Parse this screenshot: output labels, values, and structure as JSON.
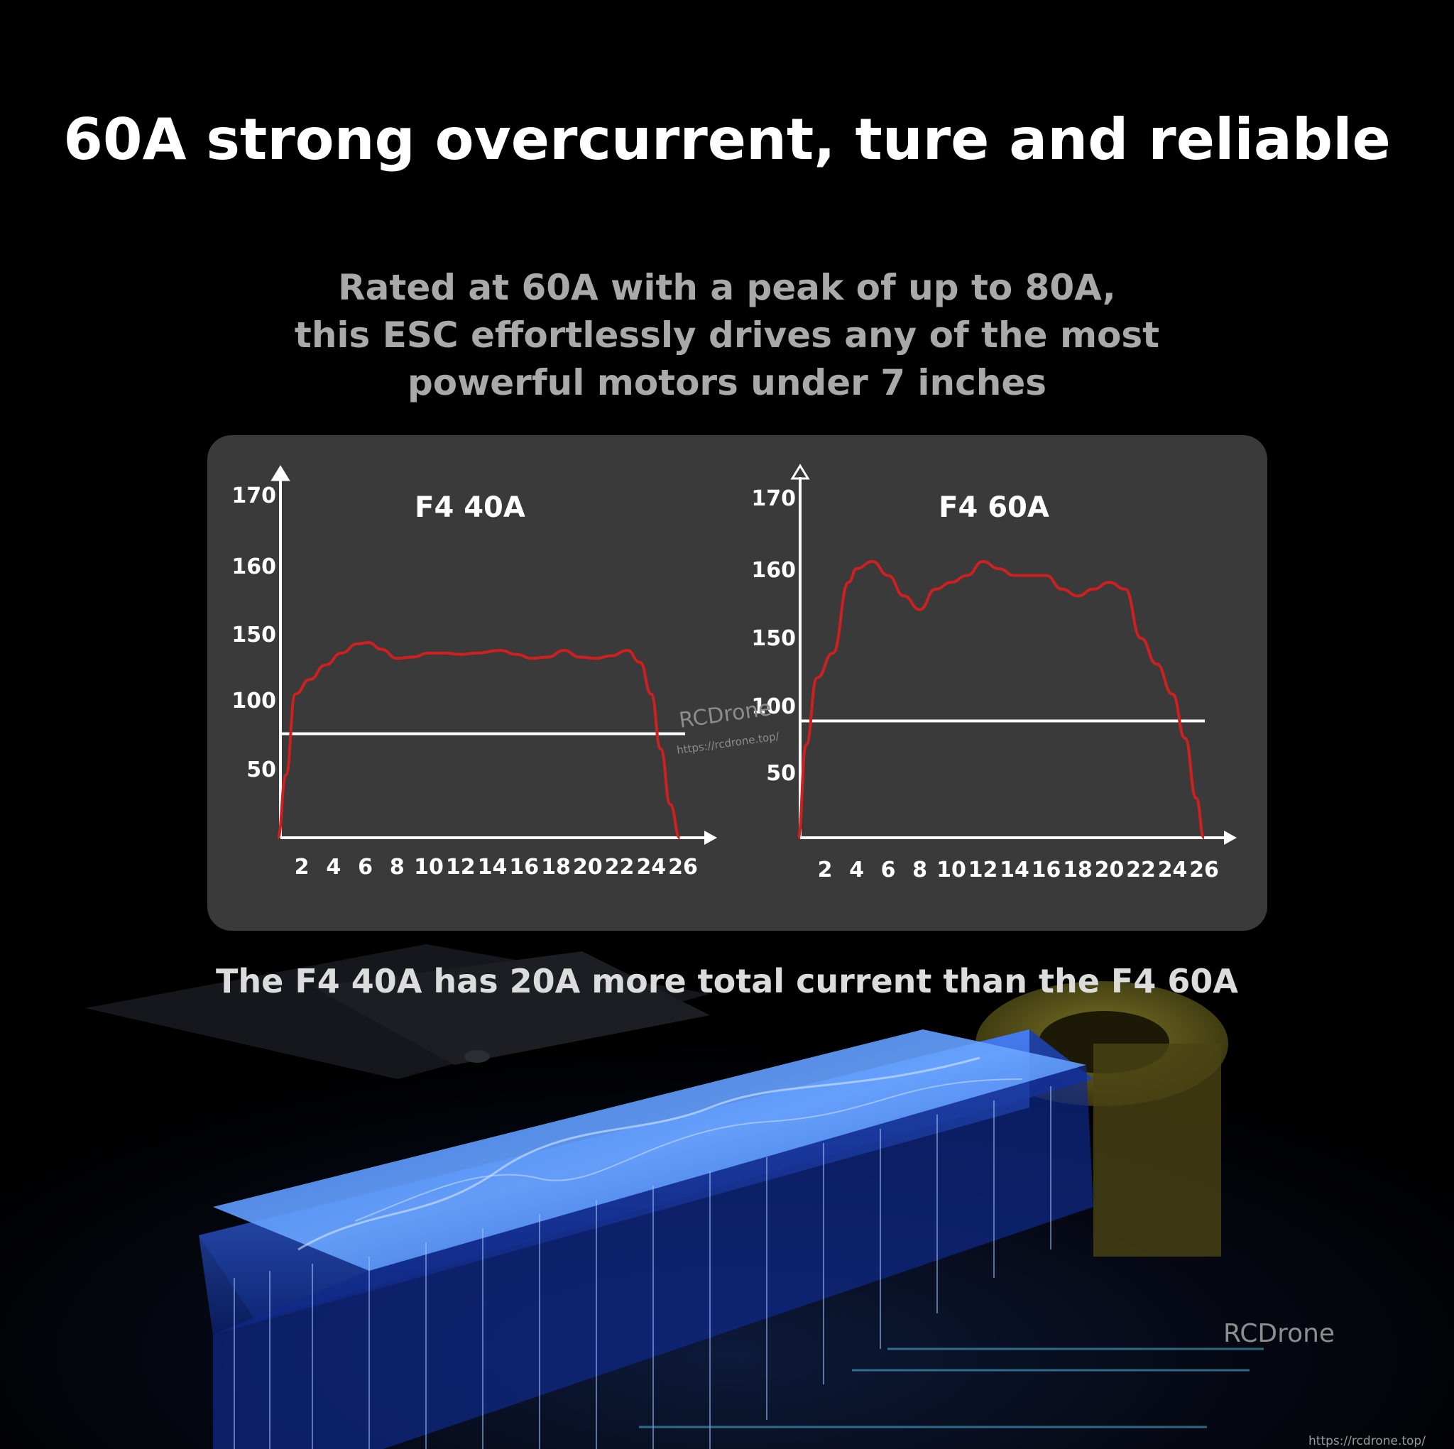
{
  "headline": "60A strong overcurrent, ture and reliable",
  "subhead_lines": [
    "Rated at 60A with a peak of up to 80A,",
    "this ESC effortlessly drives any of the most",
    "powerful motors under 7 inches"
  ],
  "caption": "The F4 40A has 20A more total current than the F4 60A",
  "watermark": {
    "name": "RCDrone",
    "url": "https://rcdrone.top/"
  },
  "brand": {
    "name": "RCDrone",
    "url": "https://rcdrone.top/"
  },
  "colors": {
    "curve": "#d01f1f",
    "axis": "#ffffff",
    "panel": "#3a3a3a",
    "reference_line": "#ffffff"
  },
  "chart_data": [
    {
      "type": "line",
      "title": "F4 40A",
      "xlabel": "",
      "ylabel": "",
      "x_ticks": [
        2,
        4,
        6,
        8,
        10,
        12,
        14,
        16,
        18,
        20,
        22,
        24,
        26
      ],
      "y_ticks": [
        "170",
        "160",
        "150",
        "100",
        "50"
      ],
      "grid": false,
      "series": [
        {
          "x": [
            0.5,
            1.0,
            1.6,
            2.5,
            3.5,
            4.5,
            5.5,
            6.2,
            7.0,
            8.0,
            9.0,
            10.0,
            11.0,
            12.0,
            13.0,
            14.5,
            15.5,
            16.5,
            17.5,
            18.5,
            19.5,
            20.5,
            21.5,
            22.5,
            23.3,
            24.0,
            24.6,
            25.2,
            25.8
          ],
          "y": [
            0,
            45,
            104,
            115,
            126,
            135,
            142,
            143,
            138,
            131,
            132,
            135,
            135,
            134,
            135,
            137,
            134,
            131,
            132,
            137,
            132,
            131,
            133,
            137,
            128,
            104,
            64,
            24,
            0
          ]
        }
      ],
      "reference_line": {
        "y": 75
      }
    },
    {
      "type": "line",
      "title": "F4 60A",
      "xlabel": "",
      "ylabel": "",
      "x_ticks": [
        2,
        4,
        6,
        8,
        10,
        12,
        14,
        16,
        18,
        20,
        22,
        24,
        26
      ],
      "y_ticks": [
        "170",
        "160",
        "150",
        "100",
        "50"
      ],
      "grid": false,
      "series": [
        {
          "x": [
            0.3,
            0.8,
            1.5,
            2.5,
            3.5,
            4.0,
            5.0,
            6.0,
            7.0,
            8.0,
            9.0,
            10.0,
            11.0,
            12.0,
            13.0,
            14.0,
            15.0,
            16.0,
            17.0,
            18.0,
            19.0,
            20.0,
            21.0,
            22.0,
            23.0,
            24.0,
            24.8,
            25.5,
            26.0
          ],
          "y": [
            0,
            70,
            120,
            138,
            158,
            160,
            161,
            159,
            156,
            154,
            157,
            158,
            159,
            161,
            160,
            159,
            159,
            159,
            157,
            156,
            157,
            158,
            157,
            149,
            130,
            108,
            75,
            30,
            0
          ]
        }
      ],
      "reference_line": {
        "y": 88
      }
    }
  ]
}
